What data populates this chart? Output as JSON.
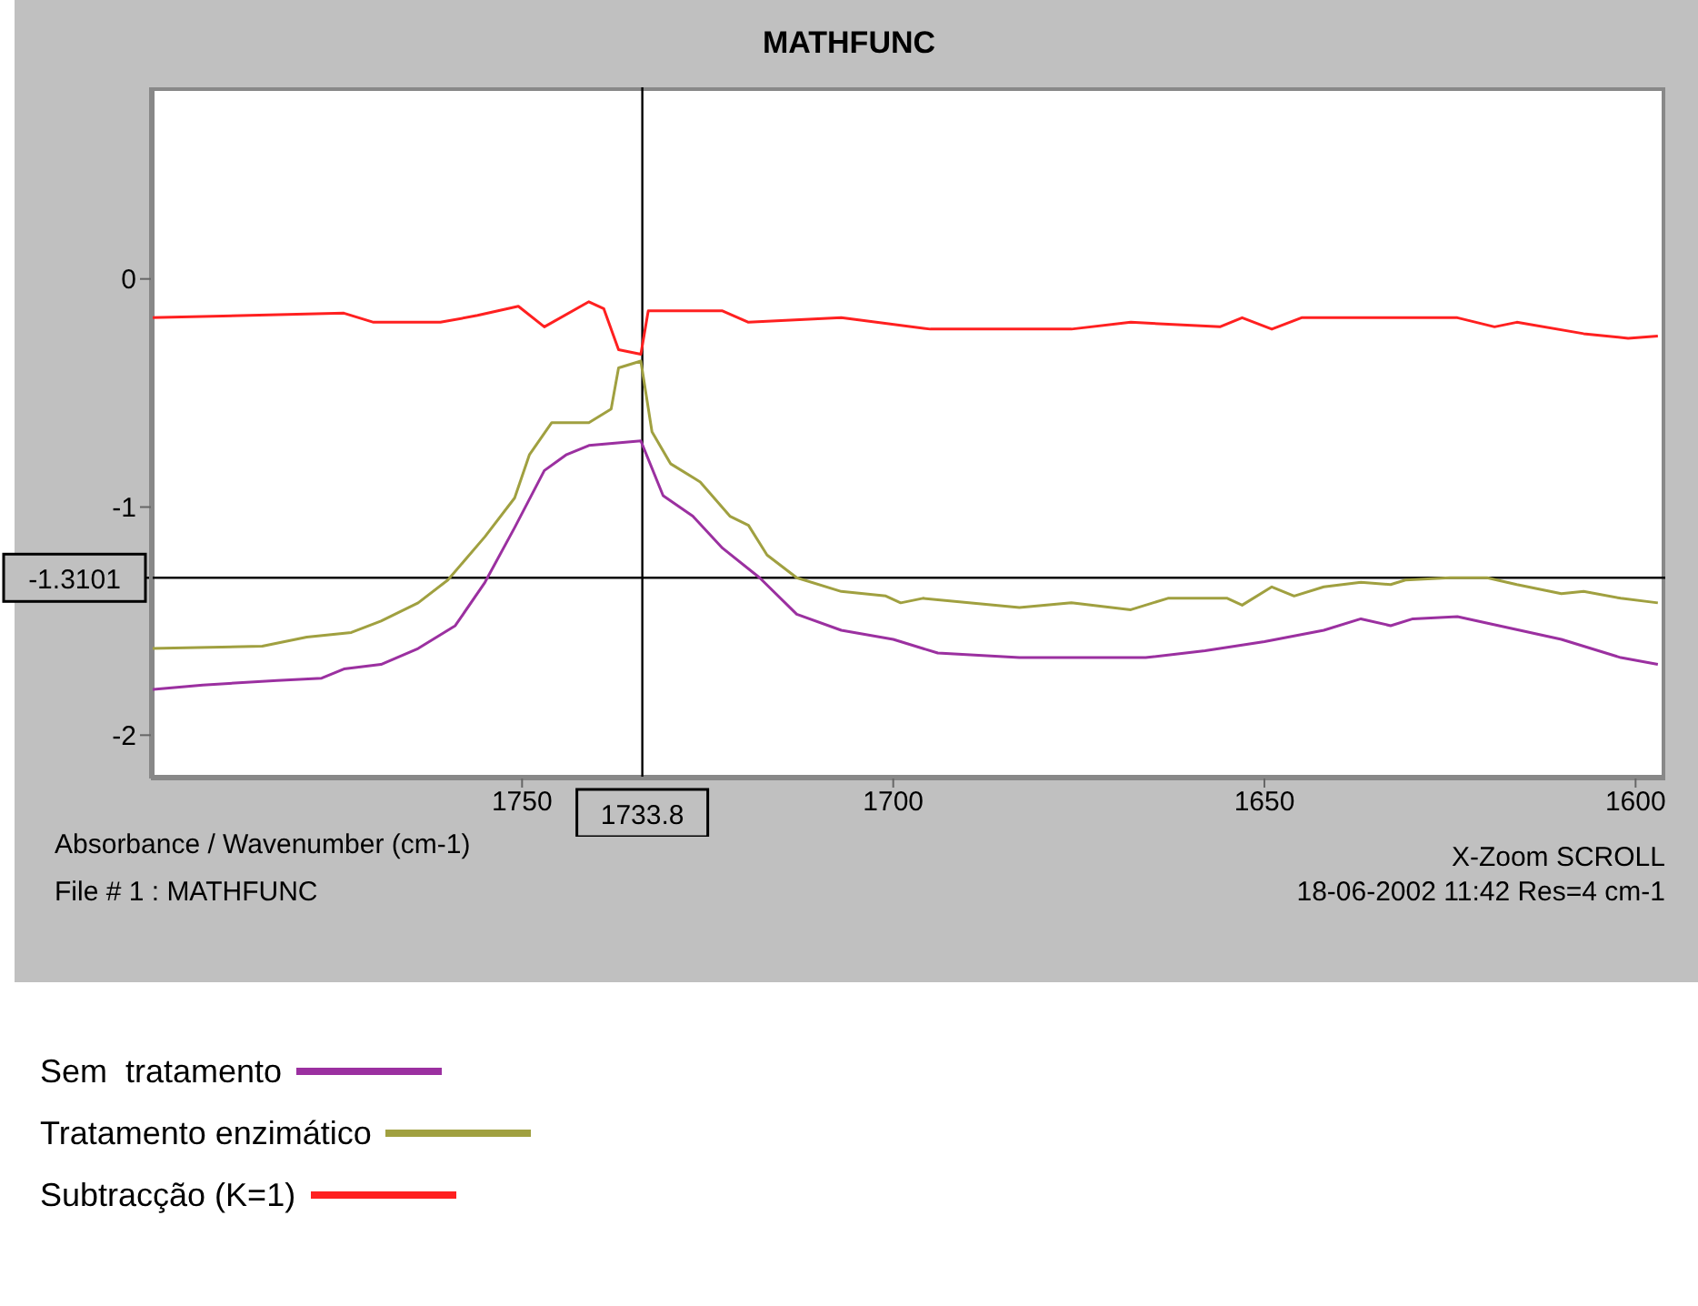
{
  "chart_data": {
    "type": "line",
    "title": "MATHFUNC",
    "xlabel": "Absorbance / Wavenumber (cm-1)",
    "annotations": [
      "X-Zoom SCROLL",
      "File # 1 : MATHFUNC",
      "18-06-2002 11:42 Res=4 cm-1"
    ],
    "xlim": [
      1800,
      1596
    ],
    "xticks": [
      1750,
      1700,
      1650,
      1600
    ],
    "ylim": [
      -2.19,
      0.84
    ],
    "yticks": [
      -2,
      -1,
      0
    ],
    "legend": "bottom",
    "marker": "none",
    "line_style": "solid",
    "ref_lines": [
      {
        "axis": "x",
        "value": 1733.8,
        "label": "1733.8",
        "color": "#000000"
      },
      {
        "axis": "y",
        "value": -1.3101,
        "label": "-1.3101",
        "color": "#000000"
      }
    ],
    "series": [
      {
        "name": "Sem  tratamento",
        "color": "#9b30a0",
        "x": [
          1800,
          1793,
          1783,
          1777,
          1774,
          1769,
          1764,
          1759,
          1755,
          1751,
          1747,
          1744,
          1741,
          1734,
          1731,
          1727,
          1723,
          1718,
          1713,
          1707,
          1700,
          1694,
          1683,
          1666,
          1658,
          1650,
          1642,
          1637,
          1633,
          1630,
          1624,
          1617,
          1610,
          1602,
          1597
        ],
        "values": [
          -1.8,
          -1.78,
          -1.76,
          -1.75,
          -1.71,
          -1.69,
          -1.62,
          -1.52,
          -1.33,
          -1.09,
          -0.84,
          -0.77,
          -0.73,
          -0.71,
          -0.95,
          -1.04,
          -1.18,
          -1.31,
          -1.47,
          -1.54,
          -1.58,
          -1.64,
          -1.66,
          -1.66,
          -1.63,
          -1.59,
          -1.54,
          -1.49,
          -1.52,
          -1.49,
          -1.48,
          -1.53,
          -1.58,
          -1.66,
          -1.69
        ]
      },
      {
        "name": "Tratamento enzimático",
        "color": "#a0a040",
        "x": [
          1800,
          1785,
          1779,
          1773,
          1769,
          1764,
          1760,
          1755,
          1751,
          1749,
          1746,
          1741,
          1738,
          1737,
          1734,
          1732.5,
          1730,
          1726,
          1722,
          1719.5,
          1717,
          1713,
          1707,
          1701,
          1699,
          1696,
          1683,
          1676,
          1668,
          1663,
          1655,
          1653,
          1649,
          1646,
          1642,
          1637,
          1633,
          1631,
          1625,
          1620,
          1616,
          1610,
          1607,
          1602,
          1597
        ],
        "values": [
          -1.62,
          -1.61,
          -1.57,
          -1.55,
          -1.5,
          -1.42,
          -1.32,
          -1.13,
          -0.96,
          -0.77,
          -0.63,
          -0.63,
          -0.57,
          -0.39,
          -0.36,
          -0.67,
          -0.81,
          -0.89,
          -1.04,
          -1.08,
          -1.21,
          -1.31,
          -1.37,
          -1.39,
          -1.42,
          -1.4,
          -1.44,
          -1.42,
          -1.45,
          -1.4,
          -1.4,
          -1.43,
          -1.35,
          -1.39,
          -1.35,
          -1.33,
          -1.34,
          -1.32,
          -1.31,
          -1.31,
          -1.34,
          -1.38,
          -1.37,
          -1.4,
          -1.42
        ]
      },
      {
        "name": "Subtracção (K=1)",
        "color": "#ff2020",
        "x": [
          1800,
          1774,
          1770,
          1761,
          1756,
          1750.5,
          1747,
          1741,
          1739,
          1737,
          1734,
          1733,
          1723,
          1719.5,
          1707,
          1695,
          1676,
          1668,
          1656,
          1653,
          1649,
          1645,
          1638,
          1624,
          1619,
          1616,
          1607,
          1601,
          1597
        ],
        "values": [
          -0.17,
          -0.15,
          -0.19,
          -0.19,
          -0.16,
          -0.12,
          -0.21,
          -0.1,
          -0.13,
          -0.31,
          -0.33,
          -0.14,
          -0.14,
          -0.19,
          -0.17,
          -0.22,
          -0.22,
          -0.19,
          -0.21,
          -0.17,
          -0.22,
          -0.17,
          -0.17,
          -0.17,
          -0.21,
          -0.19,
          -0.24,
          -0.26,
          -0.25
        ]
      }
    ]
  }
}
